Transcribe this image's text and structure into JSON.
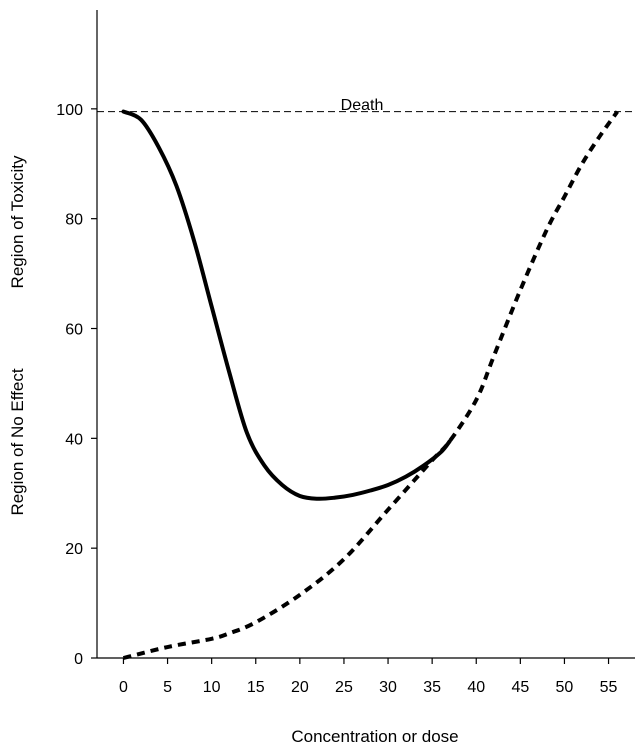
{
  "chart_data": {
    "type": "line",
    "title": "",
    "xlabel": "Concentration or dose",
    "ylabel": "",
    "y_region_labels": {
      "upper": "Region of Toxicity",
      "lower": "Region of No Effect"
    },
    "xlim": [
      -3,
      58
    ],
    "ylim": [
      0,
      118
    ],
    "x_ticks": [
      0,
      5,
      10,
      15,
      20,
      25,
      30,
      35,
      40,
      45,
      50,
      55
    ],
    "y_ticks": [
      0,
      20,
      40,
      60,
      80,
      100
    ],
    "grid": false,
    "reference_line": {
      "y": 99.5,
      "label": "Death",
      "style": "dashed"
    },
    "series": [
      {
        "style": "solid",
        "color": "#000000",
        "x": [
          0,
          2,
          4,
          6,
          8,
          10,
          12,
          14,
          16,
          18,
          20,
          22,
          24,
          26,
          28,
          30,
          32,
          34,
          36,
          37
        ],
        "y": [
          99.5,
          98,
          93,
          86,
          76,
          64,
          52,
          41,
          35,
          31.5,
          29.5,
          29,
          29.2,
          29.7,
          30.5,
          31.5,
          33,
          35,
          37.5,
          39.5
        ]
      },
      {
        "style": "dashed",
        "color": "#000000",
        "x": [
          0,
          5,
          10,
          12,
          15,
          20,
          25,
          30,
          35,
          37,
          40,
          42,
          45,
          48,
          50,
          52,
          54,
          56
        ],
        "y": [
          0,
          2,
          3.5,
          4.5,
          6.5,
          11.5,
          18,
          27,
          36,
          39.5,
          47,
          55,
          67,
          78,
          84,
          90,
          95,
          99.5
        ]
      }
    ]
  }
}
